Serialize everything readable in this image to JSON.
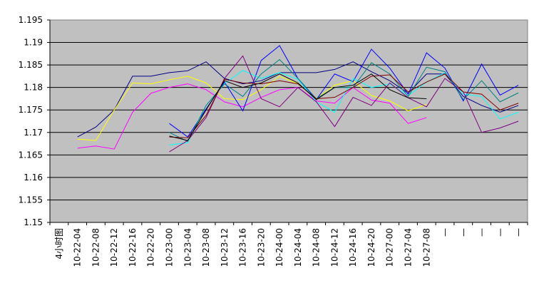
{
  "chart_data": {
    "type": "line",
    "title": "",
    "xlabel": "",
    "ylabel": "",
    "ylim": [
      1.15,
      1.195
    ],
    "ytick_step": 0.005,
    "y_tick_labels": [
      "1.15",
      "1.155",
      "1.16",
      "1.165",
      "1.17",
      "1.175",
      "1.18",
      "1.185",
      "1.19",
      "1.195"
    ],
    "grid": "horizontal",
    "legend": "none",
    "plot_background": "#c0c0c0",
    "categories": [
      "4小时图",
      "10-22-04",
      "10-22-08",
      "10-22-12",
      "10-22-16",
      "10-22-20",
      "10-23-00",
      "10-23-04",
      "10-23-08",
      "10-23-12",
      "10-23-16",
      "10-23-20",
      "10-24-00",
      "10-24-04",
      "10-24-08",
      "10-24-12",
      "10-24-16",
      "10-24-20",
      "10-27-00",
      "10-27-04",
      "10-27-08",
      "—",
      "—",
      "—",
      "—",
      "—"
    ],
    "series": [
      {
        "color": "#000080",
        "values": [
          null,
          1.169,
          1.1712,
          1.175,
          1.1825,
          1.1825,
          1.1833,
          1.1837,
          1.1857,
          1.182,
          1.1808,
          1.1815,
          1.1833,
          1.1833,
          1.1833,
          1.184,
          1.1857,
          1.1835,
          1.1815,
          1.1787,
          1.183,
          1.183,
          1.178,
          1.176,
          1.1745,
          1.176
        ]
      },
      {
        "color": "#ffff00",
        "values": [
          null,
          1.1685,
          1.1682,
          1.175,
          1.181,
          1.1808,
          1.1817,
          1.1825,
          1.181,
          1.1775,
          1.1773,
          1.1795,
          1.1825,
          1.1808,
          1.1775,
          1.1805,
          1.1815,
          1.1782,
          1.177,
          1.1748,
          1.1762,
          null,
          null,
          null,
          null,
          null
        ]
      },
      {
        "color": "#ff00ff",
        "values": [
          null,
          1.1665,
          1.167,
          1.1663,
          1.1745,
          1.1787,
          1.18,
          1.1808,
          1.1795,
          1.1768,
          1.1757,
          1.1778,
          1.1795,
          1.18,
          1.177,
          1.1765,
          1.18,
          1.1772,
          1.1765,
          1.172,
          1.1733,
          null,
          null,
          null,
          null,
          null
        ]
      },
      {
        "color": "#0000ff",
        "values": [
          null,
          null,
          null,
          null,
          null,
          null,
          1.172,
          1.169,
          1.1752,
          1.1812,
          1.1748,
          1.186,
          1.1893,
          1.182,
          1.1773,
          1.183,
          1.1813,
          1.1885,
          1.1843,
          1.1785,
          1.1877,
          1.1843,
          1.177,
          1.1852,
          1.1783,
          1.1805
        ]
      },
      {
        "color": "#00ffff",
        "values": [
          null,
          null,
          null,
          null,
          null,
          null,
          1.1672,
          1.1677,
          1.176,
          1.1808,
          1.1838,
          1.182,
          1.1833,
          1.1818,
          1.1768,
          1.1745,
          1.182,
          1.18,
          1.1808,
          1.1782,
          1.1812,
          1.1833,
          1.1785,
          1.178,
          1.173,
          1.1745
        ]
      },
      {
        "color": "#008080",
        "values": [
          null,
          null,
          null,
          null,
          null,
          null,
          1.17,
          1.168,
          1.176,
          1.1808,
          1.178,
          1.183,
          1.1862,
          1.182,
          1.1775,
          1.18,
          1.18,
          1.1855,
          1.183,
          1.178,
          1.1845,
          1.1835,
          1.1773,
          1.1815,
          1.1768,
          1.1788
        ]
      },
      {
        "color": "#800080",
        "values": [
          null,
          null,
          null,
          null,
          null,
          null,
          1.1657,
          1.1682,
          1.1733,
          1.182,
          1.187,
          1.1775,
          1.1757,
          1.18,
          1.1768,
          1.1713,
          1.1778,
          1.176,
          1.181,
          1.1777,
          1.1757,
          1.182,
          1.179,
          1.17,
          1.171,
          1.1725
        ]
      },
      {
        "color": "#800000",
        "values": [
          null,
          null,
          null,
          null,
          null,
          null,
          1.169,
          1.1688,
          1.1738,
          1.1818,
          1.181,
          1.1808,
          1.1815,
          1.1808,
          1.1775,
          1.1778,
          1.18,
          1.1825,
          1.1828,
          1.179,
          1.1812,
          1.183,
          1.179,
          1.1785,
          1.175,
          1.1765
        ]
      },
      {
        "color": "#000000",
        "values": [
          null,
          null,
          null,
          null,
          null,
          null,
          1.1692,
          1.1682,
          1.175,
          1.1815,
          1.18,
          1.181,
          1.183,
          1.181,
          1.1773,
          1.18,
          1.1805,
          1.183,
          1.1795,
          1.1777,
          1.1775,
          null,
          null,
          null,
          null,
          null
        ]
      }
    ]
  }
}
